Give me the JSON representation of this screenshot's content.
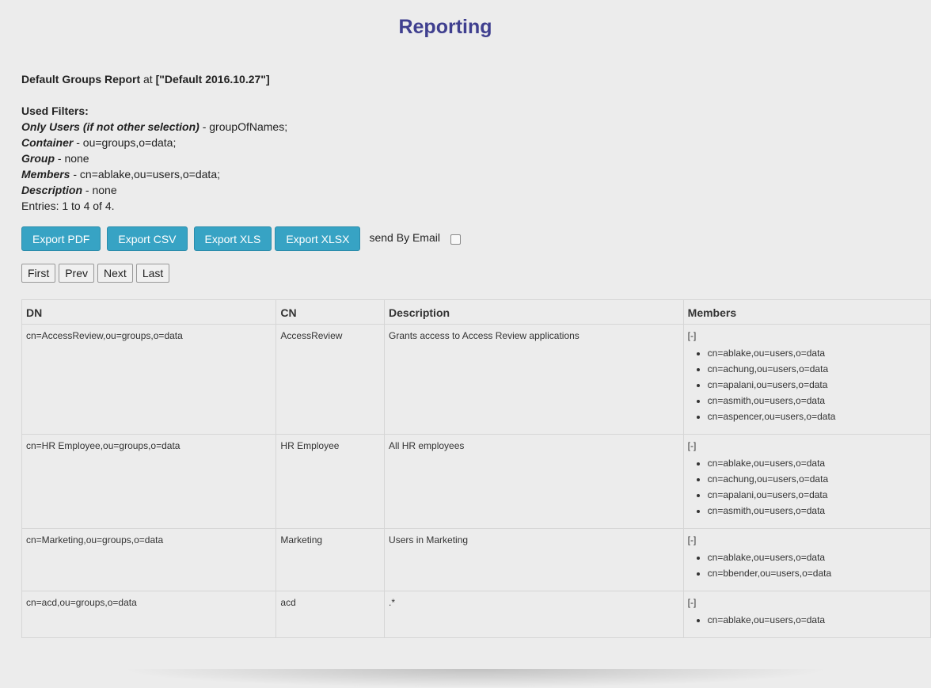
{
  "page": {
    "title": "Reporting"
  },
  "report": {
    "name": "Default Groups Report",
    "at_word": "at",
    "at_value": "[\"Default 2016.10.27\"]",
    "filters_heading": "Used Filters:",
    "filters": [
      {
        "label": "Only Users (if not other selection)",
        "value": " - groupOfNames;"
      },
      {
        "label": "Container",
        "value": " - ou=groups,o=data;"
      },
      {
        "label": "Group",
        "value": " - none"
      },
      {
        "label": "Members",
        "value": " - cn=ablake,ou=users,o=data;"
      },
      {
        "label": "Description",
        "value": " - none"
      }
    ],
    "entries": "Entries: 1 to 4 of 4."
  },
  "actions": {
    "export_pdf": "Export PDF",
    "export_csv": "Export CSV",
    "export_xls": "Export XLS",
    "export_xlsx": "Export XLSX",
    "send_email": "send By Email"
  },
  "pager": {
    "first": "First",
    "prev": "Prev",
    "next": "Next",
    "last": "Last"
  },
  "table": {
    "headers": {
      "dn": "DN",
      "cn": "CN",
      "description": "Description",
      "members": "Members"
    },
    "toggle": "[-]",
    "rows": [
      {
        "dn": "cn=AccessReview,ou=groups,o=data",
        "cn": "AccessReview",
        "description": "Grants access to Access Review applications",
        "members": [
          "cn=ablake,ou=users,o=data",
          "cn=achung,ou=users,o=data",
          "cn=apalani,ou=users,o=data",
          "cn=asmith,ou=users,o=data",
          "cn=aspencer,ou=users,o=data"
        ]
      },
      {
        "dn": "cn=HR Employee,ou=groups,o=data",
        "cn": "HR Employee",
        "description": "All HR employees",
        "members": [
          "cn=ablake,ou=users,o=data",
          "cn=achung,ou=users,o=data",
          "cn=apalani,ou=users,o=data",
          "cn=asmith,ou=users,o=data"
        ]
      },
      {
        "dn": "cn=Marketing,ou=groups,o=data",
        "cn": "Marketing",
        "description": "Users in Marketing",
        "members": [
          "cn=ablake,ou=users,o=data",
          "cn=bbender,ou=users,o=data"
        ]
      },
      {
        "dn": "cn=acd,ou=groups,o=data",
        "cn": "acd",
        "description": ".*",
        "members": [
          "cn=ablake,ou=users,o=data"
        ]
      }
    ]
  }
}
